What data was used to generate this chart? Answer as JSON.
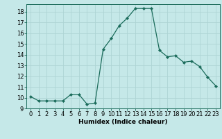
{
  "x": [
    0,
    1,
    2,
    3,
    4,
    5,
    6,
    7,
    8,
    9,
    10,
    11,
    12,
    13,
    14,
    15,
    16,
    17,
    18,
    19,
    20,
    21,
    22,
    23
  ],
  "y": [
    10.1,
    9.7,
    9.7,
    9.7,
    9.7,
    10.3,
    10.3,
    9.4,
    9.5,
    14.5,
    15.5,
    16.7,
    17.4,
    18.3,
    18.3,
    18.3,
    14.4,
    13.8,
    13.9,
    13.3,
    13.4,
    12.9,
    11.9,
    11.1
  ],
  "line_color": "#1a6b5a",
  "marker": "D",
  "marker_size": 2.2,
  "bg_color": "#c5e8e8",
  "grid_color": "#aed4d4",
  "xlabel": "Humidex (Indice chaleur)",
  "xlim": [
    -0.5,
    23.5
  ],
  "ylim": [
    9.0,
    18.7
  ],
  "xticks": [
    0,
    1,
    2,
    3,
    4,
    5,
    6,
    7,
    8,
    9,
    10,
    11,
    12,
    13,
    14,
    15,
    16,
    17,
    18,
    19,
    20,
    21,
    22,
    23
  ],
  "yticks": [
    9,
    10,
    11,
    12,
    13,
    14,
    15,
    16,
    17,
    18
  ],
  "xlabel_fontsize": 6.5,
  "tick_fontsize": 6.0
}
